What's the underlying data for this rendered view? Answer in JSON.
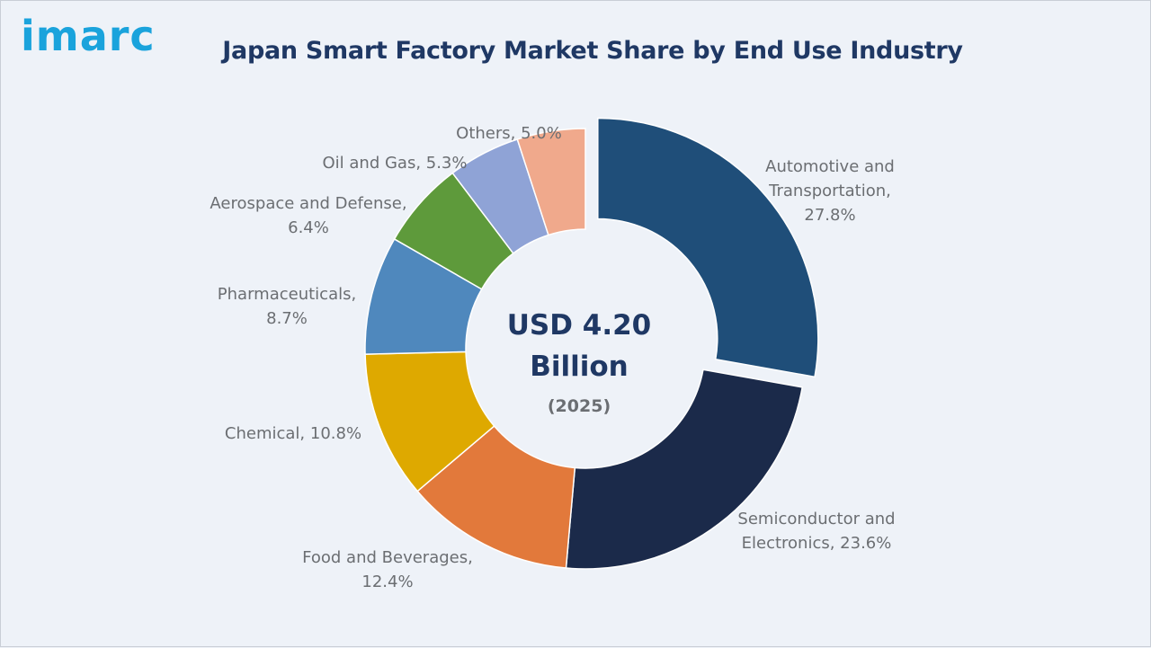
{
  "brand": {
    "logo_text": "imarc",
    "color": "#1aa3dc"
  },
  "colors": {
    "title": "#1f3864",
    "label": "#6b6e72",
    "center_text": "#1f3864"
  },
  "center": {
    "value_line1": "USD 4.20",
    "value_line2": "Billion",
    "year": "(2025)"
  },
  "chart_data": {
    "type": "pie",
    "variant": "donut",
    "title": "Japan Smart Factory Market Share by End Use Industry",
    "unit": "%",
    "slices": [
      {
        "label": "Automotive and Transportation",
        "value": 27.8,
        "label_lines": [
          "Automotive and",
          "Transportation,",
          "27.8%"
        ],
        "color": "#1f4e79",
        "exploded": true
      },
      {
        "label": "Semiconductor and Electronics",
        "value": 23.6,
        "label_lines": [
          "Semiconductor and",
          "Electronics, 23.6%"
        ],
        "color": "#1b2a4a"
      },
      {
        "label": "Food and Beverages",
        "value": 12.4,
        "label_lines": [
          "Food and Beverages,",
          "12.4%"
        ],
        "color": "#e2793b"
      },
      {
        "label": "Chemical",
        "value": 10.8,
        "label_lines": [
          "Chemical, 10.8%"
        ],
        "color": "#dea900"
      },
      {
        "label": "Pharmaceuticals",
        "value": 8.7,
        "label_lines": [
          "Pharmaceuticals,",
          "8.7%"
        ],
        "color": "#4f88bd"
      },
      {
        "label": "Aerospace and Defense",
        "value": 6.4,
        "label_lines": [
          "Aerospace and Defense,",
          "6.4%"
        ],
        "color": "#5e9a3b"
      },
      {
        "label": "Oil and Gas",
        "value": 5.3,
        "label_lines": [
          "Oil and Gas, 5.3%"
        ],
        "color": "#8fa3d6"
      },
      {
        "label": "Others",
        "value": 5.0,
        "label_lines": [
          "Others, 5.0%"
        ],
        "color": "#f0a98c"
      }
    ]
  }
}
